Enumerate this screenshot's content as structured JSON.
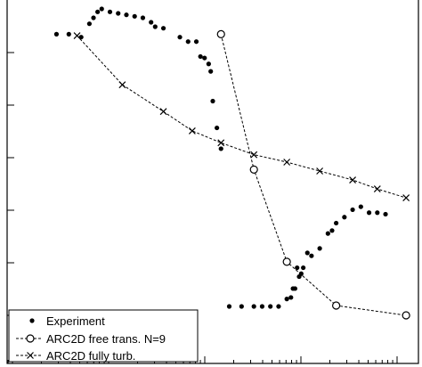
{
  "chart_data": {
    "type": "line",
    "title": "",
    "xlabel": "",
    "ylabel": "",
    "xlim": [
      0,
      100
    ],
    "ylim": [
      0,
      100
    ],
    "xscale": "log",
    "grid": false,
    "legend": {
      "placement": "bottom-left",
      "entries": [
        "Experiment",
        "ARC2D free trans. N=9",
        "ARC2D fully turb."
      ]
    },
    "series": [
      {
        "name": "Experiment",
        "style": "dots",
        "x": [
          12,
          15,
          18,
          20,
          21,
          22,
          23,
          25,
          27,
          29,
          31,
          33,
          35,
          36,
          38,
          42,
          44,
          46,
          47,
          48,
          49,
          49.5,
          50,
          51,
          52,
          54,
          57,
          60,
          62,
          64,
          66,
          68,
          69,
          69.5,
          70,
          70.5,
          71,
          71.5,
          72,
          73,
          74,
          76,
          78,
          79,
          80,
          82,
          84,
          86,
          88,
          90,
          92
        ],
        "y": [
          94.5,
          94.5,
          93.5,
          98,
          100,
          102,
          103,
          102,
          101.5,
          101,
          100.5,
          100,
          98.5,
          97,
          96.5,
          93.5,
          92,
          92,
          87,
          86.5,
          84.5,
          82,
          72,
          63,
          56,
          3,
          3,
          3,
          3,
          3,
          3,
          5.5,
          6,
          9,
          9,
          16,
          13,
          14,
          16,
          21,
          20,
          22.5,
          27.5,
          28.5,
          31,
          33,
          35.5,
          36.5,
          34.5,
          34.5,
          34
        ],
        "color": "#000000"
      },
      {
        "name": "ARC2D free trans. N=9",
        "style": "circle-dashed",
        "x": [
          52,
          60,
          68,
          80,
          97
        ],
        "y": [
          94.5,
          49,
          18,
          3.3,
          0
        ],
        "color": "#000000"
      },
      {
        "name": "ARC2D fully turb.",
        "style": "x-dashed",
        "x": [
          17,
          28,
          38,
          45,
          52,
          60,
          68,
          76,
          84,
          90,
          97
        ],
        "y": [
          94,
          77.5,
          68.5,
          62,
          58,
          54,
          51.5,
          48.5,
          45.5,
          42.5,
          39.5
        ],
        "color": "#000000"
      }
    ]
  }
}
